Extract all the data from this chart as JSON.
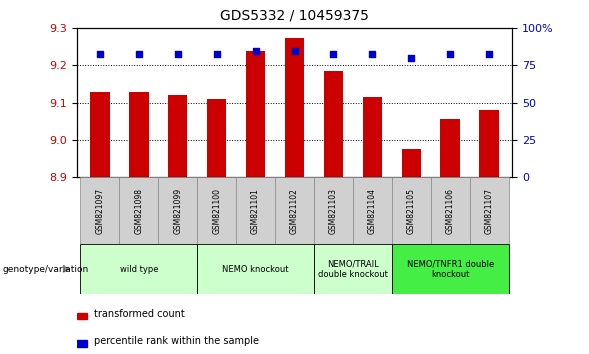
{
  "title": "GDS5332 / 10459375",
  "samples": [
    "GSM821097",
    "GSM821098",
    "GSM821099",
    "GSM821100",
    "GSM821101",
    "GSM821102",
    "GSM821103",
    "GSM821104",
    "GSM821105",
    "GSM821106",
    "GSM821107"
  ],
  "bar_values": [
    9.13,
    9.13,
    9.12,
    9.11,
    9.24,
    9.275,
    9.185,
    9.115,
    8.975,
    9.055,
    9.08
  ],
  "percentile_values": [
    83,
    83,
    83,
    83,
    85,
    85,
    83,
    83,
    80,
    83,
    83
  ],
  "ylim_left": [
    8.9,
    9.3
  ],
  "ylim_right": [
    0,
    100
  ],
  "yticks_left": [
    8.9,
    9.0,
    9.1,
    9.2,
    9.3
  ],
  "yticks_right": [
    0,
    25,
    50,
    75,
    100
  ],
  "bar_color": "#cc0000",
  "dot_color": "#0000cc",
  "bar_width": 0.5,
  "group_defs": [
    {
      "start": 0,
      "end": 2,
      "label": "wild type",
      "color": "#ccffcc"
    },
    {
      "start": 3,
      "end": 5,
      "label": "NEMO knockout",
      "color": "#ccffcc"
    },
    {
      "start": 6,
      "end": 7,
      "label": "NEMO/TRAIL\ndouble knockout",
      "color": "#ccffcc"
    },
    {
      "start": 8,
      "end": 10,
      "label": "NEMO/TNFR1 double\nknockout",
      "color": "#44ee44"
    }
  ],
  "legend_items": [
    {
      "label": "transformed count",
      "color": "#cc0000"
    },
    {
      "label": "percentile rank within the sample",
      "color": "#0000cc"
    }
  ],
  "genotype_label": "genotype/variation",
  "tick_label_color_left": "#cc0000",
  "tick_label_color_right": "#0000cc",
  "sample_box_color": "#d0d0d0",
  "sample_box_edge": "#888888"
}
